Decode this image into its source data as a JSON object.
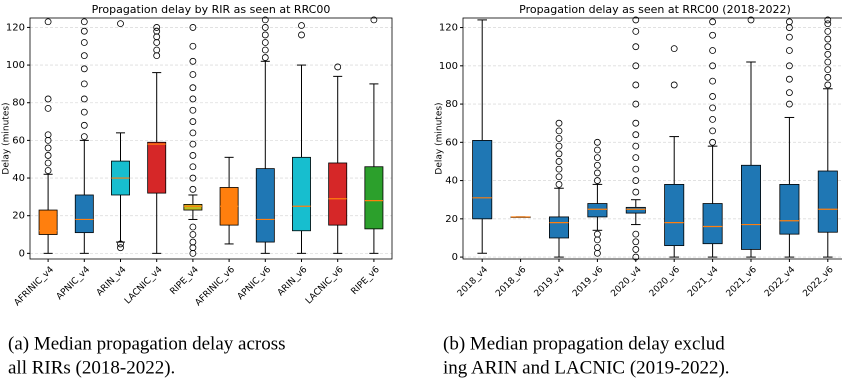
{
  "chart_data": [
    {
      "type": "box",
      "title": "Propagation delay by RIR as seen at RRC00",
      "y_label": "Delay (minutes)",
      "categories": [
        "AFRINIC_v4",
        "APNIC_v4",
        "ARIN_v4",
        "LACNIC_v4",
        "RIPE_v4",
        "AFRINIC_v6",
        "APNIC_v6",
        "ARIN_v6",
        "LACNIC_v6",
        "RIPE_v6"
      ],
      "colors": [
        "#ff7f0e",
        "#1f77b4",
        "#17becf",
        "#d62728",
        "#bcbd22",
        "#ff7f0e",
        "#1f77b4",
        "#17becf",
        "#d62728",
        "#2ca02c"
      ],
      "median_color": "#ff7f0e",
      "boxes": [
        {
          "whislo": 0,
          "q1": 10,
          "med": 12,
          "q3": 23,
          "whishi": 42,
          "fliers": [
            44,
            48,
            52,
            56,
            60,
            63,
            77,
            82,
            123
          ]
        },
        {
          "whislo": 0,
          "q1": 11,
          "med": 18,
          "q3": 31,
          "whishi": 60,
          "fliers": [
            62,
            68,
            75,
            82,
            90,
            98,
            105,
            112,
            118,
            123
          ]
        },
        {
          "whislo": 6,
          "q1": 31,
          "med": 40,
          "q3": 49,
          "whishi": 64,
          "fliers": [
            3,
            5,
            122
          ]
        },
        {
          "whislo": 0,
          "q1": 32,
          "med": 58,
          "q3": 59,
          "whishi": 96,
          "fliers": [
            105,
            108,
            112,
            115,
            118,
            120
          ]
        },
        {
          "whislo": 18,
          "q1": 23,
          "med": 25,
          "q3": 26,
          "whishi": 31,
          "fliers": [
            0,
            3,
            6,
            10,
            14,
            34,
            40,
            46,
            52,
            58,
            64,
            70,
            76,
            82,
            88,
            95,
            102,
            110,
            120
          ]
        },
        {
          "whislo": 5,
          "q1": 15,
          "med": 25,
          "q3": 35,
          "whishi": 51,
          "fliers": []
        },
        {
          "whislo": 0,
          "q1": 6,
          "med": 18,
          "q3": 45,
          "whishi": 102,
          "fliers": [
            104,
            108,
            112,
            116,
            120,
            124
          ]
        },
        {
          "whislo": 0,
          "q1": 12,
          "med": 25,
          "q3": 51,
          "whishi": 100,
          "fliers": [
            116,
            121
          ]
        },
        {
          "whislo": 0,
          "q1": 15,
          "med": 29,
          "q3": 48,
          "whishi": 94,
          "fliers": [
            99
          ]
        },
        {
          "whislo": 0,
          "q1": 13,
          "med": 28,
          "q3": 46,
          "whishi": 90,
          "fliers": [
            124
          ]
        }
      ],
      "ylim": [
        -3,
        125
      ],
      "yticks": [
        0,
        20,
        40,
        60,
        80,
        100,
        120
      ],
      "grid": true,
      "caption": [
        "(a) Median propagation delay across",
        "all RIRs (2018-2022)."
      ]
    },
    {
      "type": "box",
      "title": "Propagation delay as seen at RRC00 (2018-2022)",
      "y_label": "Delay (minutes)",
      "categories": [
        "2018_v4",
        "2018_v6",
        "2019_v4",
        "2019_v6",
        "2020_v4",
        "2020_v6",
        "2021_v4",
        "2021_v6",
        "2022_v4",
        "2022_v6"
      ],
      "colors": [
        "#1f77b4",
        "#1f77b4",
        "#1f77b4",
        "#1f77b4",
        "#1f77b4",
        "#1f77b4",
        "#1f77b4",
        "#1f77b4",
        "#1f77b4",
        "#1f77b4"
      ],
      "median_color": "#ff7f0e",
      "boxes": [
        {
          "whislo": 2,
          "q1": 20,
          "med": 31,
          "q3": 61,
          "whishi": 124,
          "fliers": []
        },
        {
          "whislo": 21,
          "q1": 21,
          "med": 21,
          "q3": 21,
          "whishi": 21,
          "fliers": []
        },
        {
          "whislo": 0,
          "q1": 10,
          "med": 18,
          "q3": 21,
          "whishi": 36,
          "fliers": [
            38,
            42,
            46,
            50,
            54,
            58,
            62,
            66,
            70
          ]
        },
        {
          "whislo": 14,
          "q1": 21,
          "med": 25,
          "q3": 28,
          "whishi": 38,
          "fliers": [
            2,
            5,
            9,
            12,
            40,
            44,
            48,
            52,
            56,
            60
          ]
        },
        {
          "whislo": 17,
          "q1": 23,
          "med": 25,
          "q3": 26,
          "whishi": 30,
          "fliers": [
            0,
            4,
            8,
            12,
            34,
            40,
            46,
            52,
            58,
            64,
            70,
            80,
            90,
            100,
            110,
            118,
            124
          ]
        },
        {
          "whislo": 0,
          "q1": 6,
          "med": 18,
          "q3": 38,
          "whishi": 63,
          "fliers": [
            90,
            109
          ]
        },
        {
          "whislo": 0,
          "q1": 7,
          "med": 16,
          "q3": 28,
          "whishi": 58,
          "fliers": [
            60,
            66,
            72,
            78,
            84,
            92,
            100,
            108,
            116,
            123
          ]
        },
        {
          "whislo": 0,
          "q1": 4,
          "med": 17,
          "q3": 48,
          "whishi": 102,
          "fliers": [
            124
          ]
        },
        {
          "whislo": 0,
          "q1": 12,
          "med": 19,
          "q3": 38,
          "whishi": 73,
          "fliers": [
            80,
            86,
            93,
            100,
            108,
            115,
            120,
            123
          ]
        },
        {
          "whislo": 0,
          "q1": 13,
          "med": 25,
          "q3": 45,
          "whishi": 88,
          "fliers": [
            90,
            94,
            98,
            102,
            106,
            110,
            114,
            118,
            122,
            124
          ]
        }
      ],
      "ylim": [
        -1,
        125
      ],
      "yticks": [
        0,
        20,
        40,
        60,
        80,
        100,
        120
      ],
      "grid": true,
      "caption": [
        "(b) Median propagation delay exclud",
        "ing ARIN and LACNIC (2019-2022)."
      ]
    }
  ]
}
